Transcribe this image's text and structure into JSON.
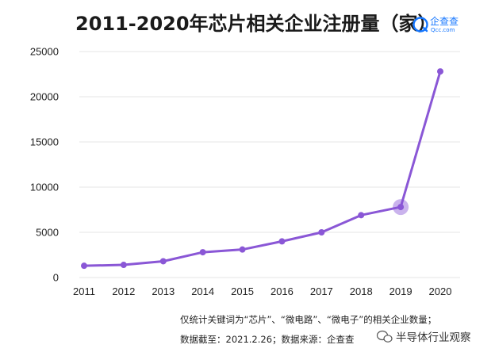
{
  "title": "2011-2020年芯片相关企业注册量（家）",
  "logo": {
    "name": "企查查",
    "sub": "Qcc.com",
    "color": "#1677ff"
  },
  "chart_data": {
    "type": "line",
    "title": "2011-2020年芯片相关企业注册量（家）",
    "xlabel": "",
    "ylabel": "",
    "categories": [
      "2011",
      "2012",
      "2013",
      "2014",
      "2015",
      "2016",
      "2017",
      "2018",
      "2019",
      "2020"
    ],
    "series": [
      {
        "values": [
          1300,
          1400,
          1800,
          2800,
          3100,
          4000,
          5000,
          6900,
          7800,
          22800
        ],
        "color": "#8a57d6",
        "highlight_index": 8
      }
    ],
    "ylim": [
      0,
      25000
    ],
    "yticks": [
      "0",
      "5000",
      "10000",
      "15000",
      "20000",
      "25000"
    ],
    "grid": true
  },
  "notes": {
    "line1": "仅统计关键词为“芯片”、“微电路”、“微电子”的相关企业数量；",
    "line2": "数据截至：2021.2.26；数据来源：企查查"
  },
  "watermark": {
    "text": "半导体行业观察",
    "icon": "chat-bubble-icon"
  }
}
